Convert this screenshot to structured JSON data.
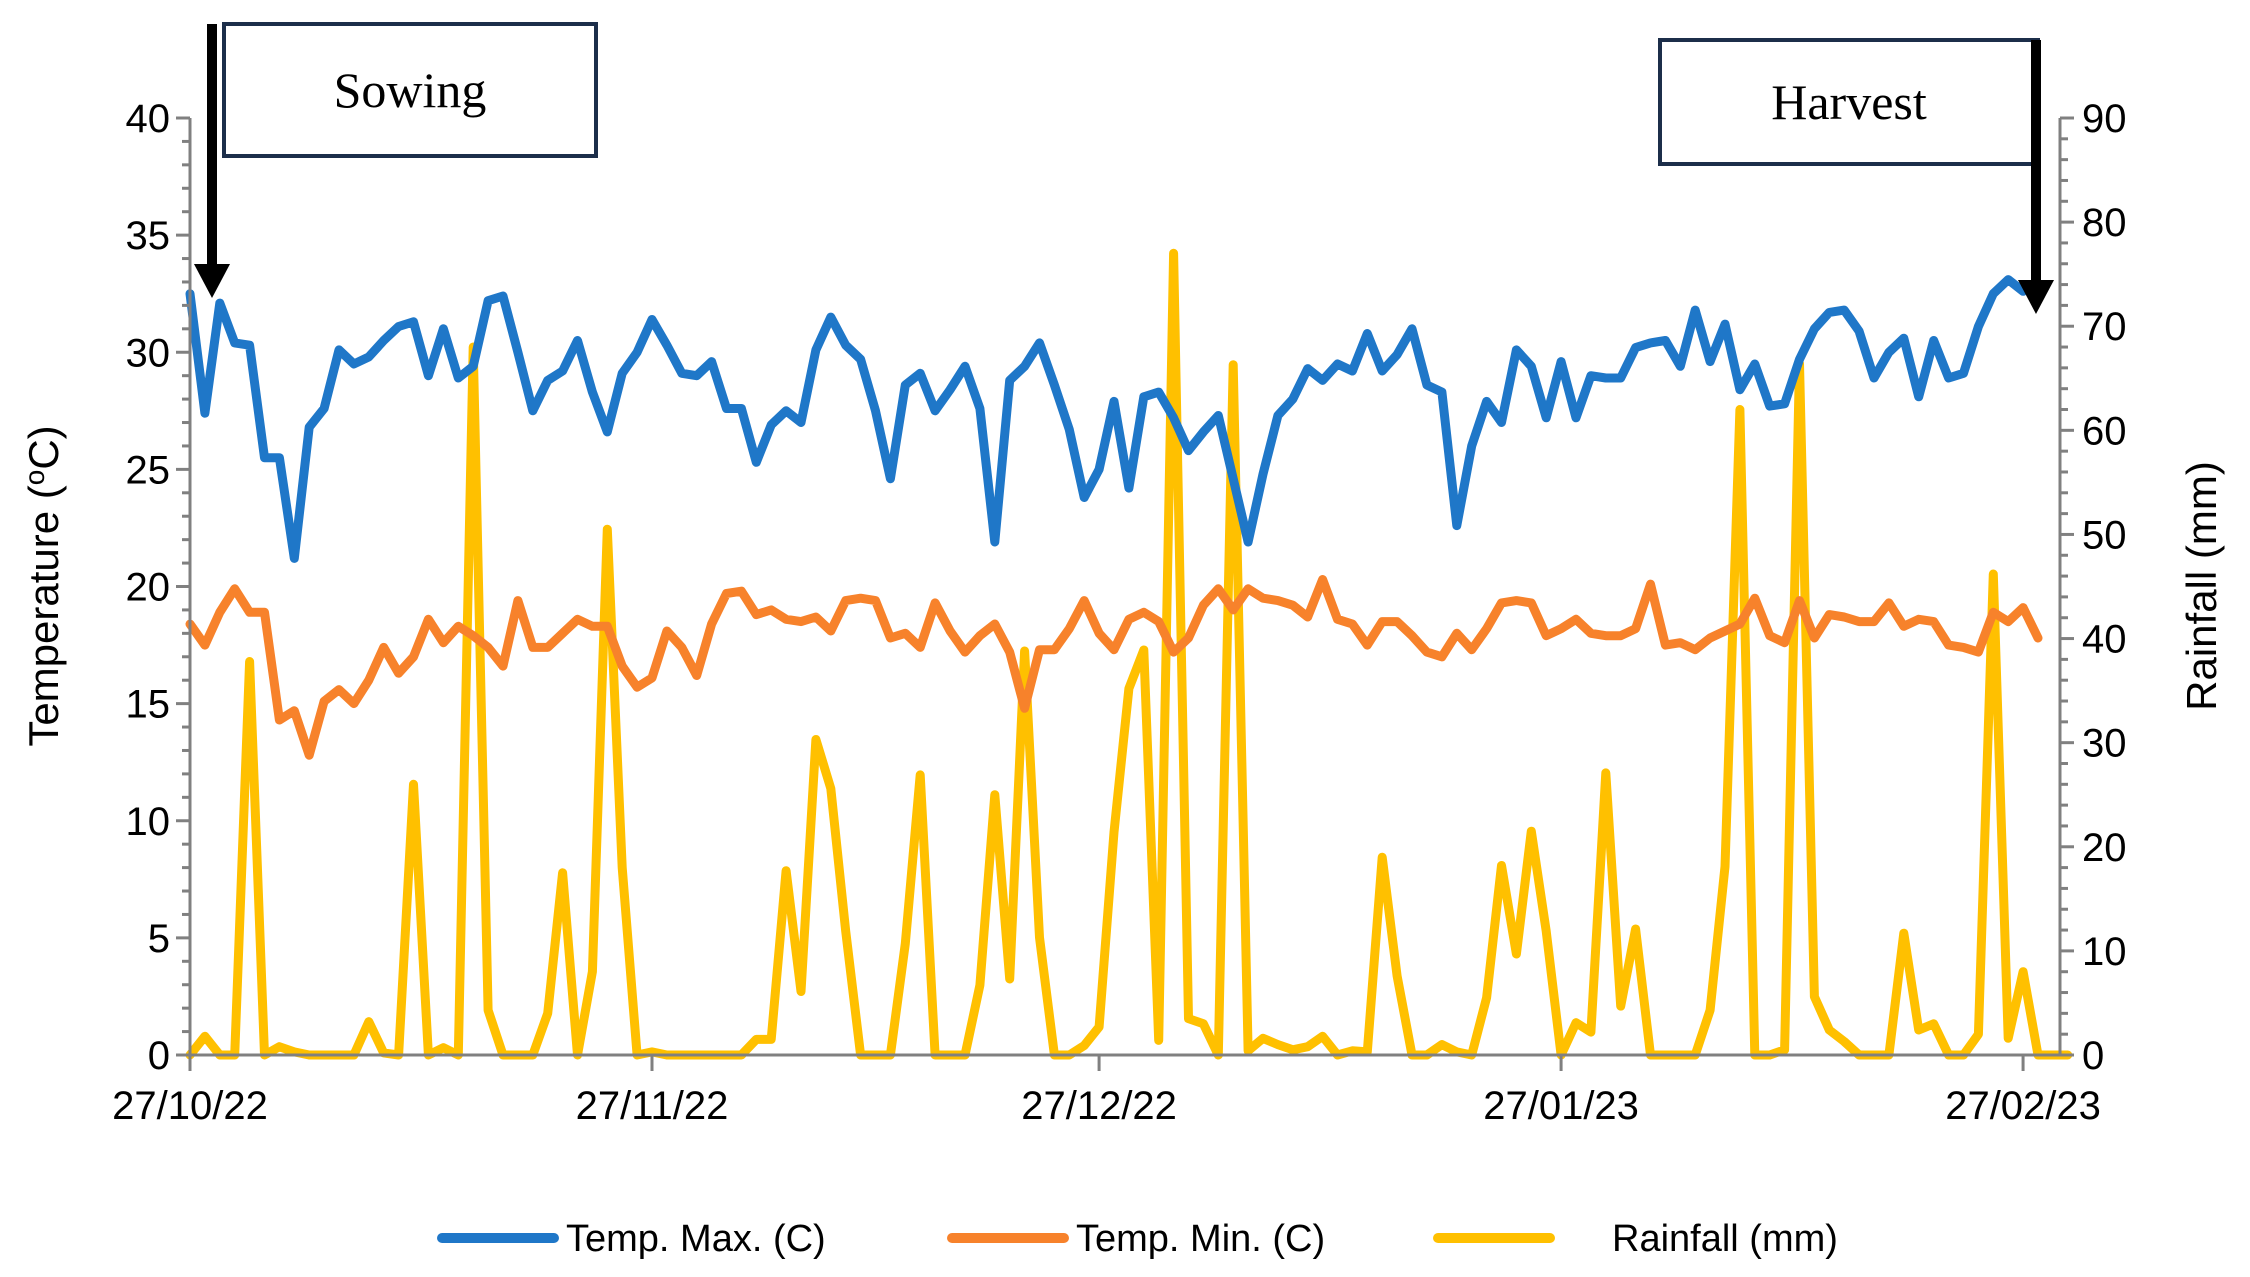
{
  "chart_data": {
    "type": "line",
    "title": "",
    "xlabel": "",
    "ylabel_left": "Temperature (°C)",
    "ylabel_left_prefix": "Temperature (",
    "ylabel_left_sup": "o",
    "ylabel_left_suffix": "C)",
    "ylabel_right": "Rainfall (mm)",
    "ylim_left": [
      0,
      40
    ],
    "ylim_right": [
      0,
      90
    ],
    "yticks_left": [
      0,
      5,
      10,
      15,
      20,
      25,
      30,
      35,
      40
    ],
    "yticks_right": [
      0,
      10,
      20,
      30,
      40,
      50,
      60,
      70,
      80,
      90
    ],
    "x_range_days": [
      0,
      124
    ],
    "x_ticks": [
      {
        "day": 0,
        "label": "27/10/22"
      },
      {
        "day": 31,
        "label": "27/11/22"
      },
      {
        "day": 61,
        "label": "27/12/22"
      },
      {
        "day": 92,
        "label": "27/01/23"
      },
      {
        "day": 123,
        "label": "27/02/23"
      }
    ],
    "series": [
      {
        "name": "Temp. Max. (C)",
        "axis": "left",
        "color": "#1F77C8",
        "values": [
          32.5,
          27.4,
          32.1,
          30.4,
          30.3,
          25.5,
          25.5,
          21.2,
          26.8,
          27.6,
          30.1,
          29.5,
          29.8,
          30.5,
          31.1,
          31.3,
          29.0,
          31.0,
          28.9,
          29.4,
          32.2,
          32.4,
          30.0,
          27.5,
          28.8,
          29.2,
          30.5,
          28.3,
          26.6,
          29.1,
          30.0,
          31.4,
          30.3,
          29.1,
          29.0,
          29.6,
          27.6,
          27.6,
          25.3,
          26.9,
          27.5,
          27.0,
          30.1,
          31.5,
          30.3,
          29.7,
          27.5,
          24.6,
          28.6,
          29.1,
          27.5,
          28.4,
          29.4,
          27.6,
          21.9,
          28.8,
          29.4,
          30.4,
          28.6,
          26.7,
          23.8,
          25.0,
          27.9,
          24.2,
          28.1,
          28.3,
          27.2,
          25.8,
          26.6,
          27.3,
          24.6,
          21.9,
          24.8,
          27.3,
          28.0,
          29.3,
          28.8,
          29.5,
          29.2,
          30.8,
          29.2,
          29.9,
          31.0,
          28.6,
          28.3,
          22.6,
          26.0,
          27.9,
          27.0,
          30.1,
          29.4,
          27.2,
          29.6,
          27.2,
          29.0,
          28.9,
          28.9,
          30.2,
          30.4,
          30.5,
          29.4,
          31.8,
          29.6,
          31.2,
          28.4,
          29.5,
          27.7,
          27.8,
          29.7,
          31.0,
          31.7,
          31.8,
          30.9,
          28.9,
          30.0,
          30.6,
          28.1,
          30.5,
          28.9,
          29.1,
          31.1,
          32.5,
          33.1,
          32.6
        ]
      },
      {
        "name": "Temp. Min. (C)",
        "axis": "left",
        "color": "#F7822B",
        "values": [
          18.4,
          17.5,
          18.9,
          19.9,
          18.9,
          18.9,
          14.3,
          14.7,
          12.8,
          15.1,
          15.6,
          15.0,
          16.0,
          17.4,
          16.3,
          17.0,
          18.6,
          17.6,
          18.3,
          17.9,
          17.4,
          16.6,
          19.4,
          17.4,
          17.4,
          18.0,
          18.6,
          18.3,
          18.3,
          16.6,
          15.7,
          16.1,
          18.1,
          17.4,
          16.2,
          18.4,
          19.7,
          19.8,
          18.8,
          19.0,
          18.6,
          18.5,
          18.7,
          18.1,
          19.4,
          19.5,
          19.4,
          17.8,
          18.0,
          17.4,
          19.3,
          18.1,
          17.2,
          17.9,
          18.4,
          17.2,
          14.8,
          17.3,
          17.3,
          18.2,
          19.4,
          18.0,
          17.3,
          18.6,
          18.9,
          18.5,
          17.2,
          17.8,
          19.2,
          19.9,
          19.0,
          19.9,
          19.5,
          19.4,
          19.2,
          18.7,
          20.3,
          18.6,
          18.4,
          17.5,
          18.5,
          18.5,
          17.9,
          17.2,
          17.0,
          18.0,
          17.3,
          18.2,
          19.3,
          19.4,
          19.3,
          17.9,
          18.2,
          18.6,
          18.0,
          17.9,
          17.9,
          18.2,
          20.1,
          17.5,
          17.6,
          17.3,
          17.8,
          18.1,
          18.4,
          19.5,
          17.9,
          17.6,
          19.4,
          17.8,
          18.8,
          18.7,
          18.5,
          18.5,
          19.3,
          18.3,
          18.6,
          18.5,
          17.5,
          17.4,
          17.2,
          18.9,
          18.5,
          19.1,
          17.8
        ]
      },
      {
        "name": "Rainfall (mm)",
        "axis": "right",
        "color": "#FFC000",
        "values": [
          0,
          1.8,
          0,
          0,
          37.8,
          0,
          0.8,
          0.3,
          0,
          0,
          0,
          0,
          3.2,
          0.2,
          0,
          26,
          0,
          0.7,
          0,
          68,
          4.3,
          0,
          0,
          0,
          4,
          17.5,
          0,
          8,
          50.5,
          18,
          0,
          0.3,
          0,
          0,
          0,
          0,
          0,
          0,
          1.5,
          1.5,
          17.7,
          6.1,
          30.3,
          25.6,
          11.9,
          0,
          0,
          0,
          10.7,
          26.9,
          0,
          0,
          0,
          6.7,
          25,
          7.3,
          38.8,
          11.3,
          0,
          0,
          0.9,
          2.7,
          21.4,
          35.2,
          38.9,
          1.4,
          77,
          3.5,
          3,
          0,
          66.3,
          0.4,
          1.6,
          1,
          0.5,
          0.8,
          1.8,
          0,
          0.4,
          0.3,
          19,
          7.6,
          0,
          0,
          1,
          0.3,
          0,
          5.5,
          18.2,
          9.7,
          21.5,
          11.9,
          0,
          3.1,
          2.2,
          27.1,
          4.7,
          12.1,
          0,
          0,
          0,
          0,
          4.3,
          18.1,
          62,
          0,
          0,
          0.5,
          66.4,
          5.6,
          2.4,
          1.3,
          0,
          0,
          0,
          11.7,
          2.4,
          3,
          0,
          0,
          2,
          46.2,
          1.6,
          8,
          0,
          0,
          0
        ]
      }
    ],
    "annotations": [
      {
        "label": "Sowing",
        "arrow_day": 1
      },
      {
        "label": "Harvest",
        "arrow_day": 123
      }
    ],
    "legend_position": "bottom",
    "grid": false
  }
}
